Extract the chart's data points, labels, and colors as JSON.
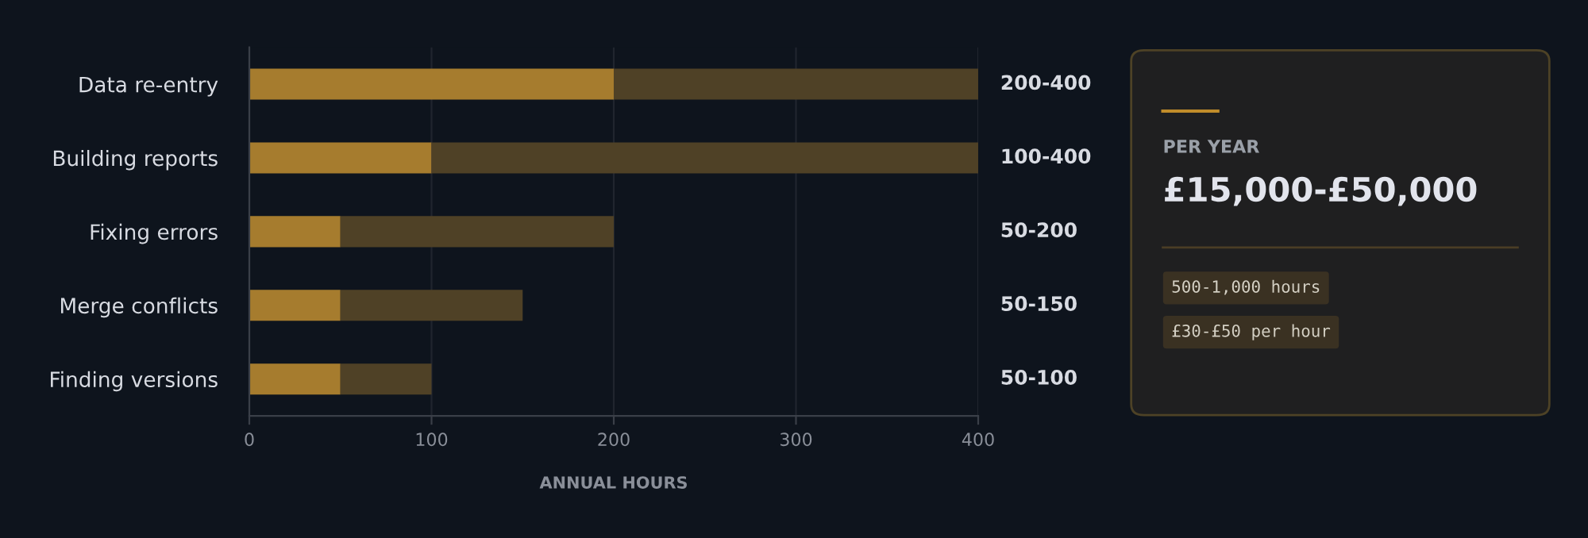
{
  "chart_data": [
    {
      "type": "bar",
      "orientation": "horizontal",
      "stacked": true,
      "categories": [
        "Data re-entry",
        "Building reports",
        "Fixing errors",
        "Merge conflicts",
        "Finding versions"
      ],
      "series": [
        {
          "color": "#a67c2e",
          "values": [
            200,
            100,
            50,
            50,
            50
          ]
        },
        {
          "color": "#4f4126",
          "values": [
            200,
            300,
            150,
            100,
            50
          ]
        }
      ],
      "annotations": [
        "200-400",
        "100-400",
        "50-200",
        "50-150",
        "50-100"
      ],
      "xlim": [
        0,
        400
      ],
      "xticks": [
        0,
        100,
        200,
        300,
        400
      ],
      "xlabel": "ANNUAL HOURS",
      "grid": "x"
    },
    {
      "type": "other",
      "title": "PER YEAR",
      "subtitle": "£15,000-£50,000",
      "annotations": [
        "500-1,000 hours",
        "£30-£50 per hour"
      ]
    }
  ]
}
